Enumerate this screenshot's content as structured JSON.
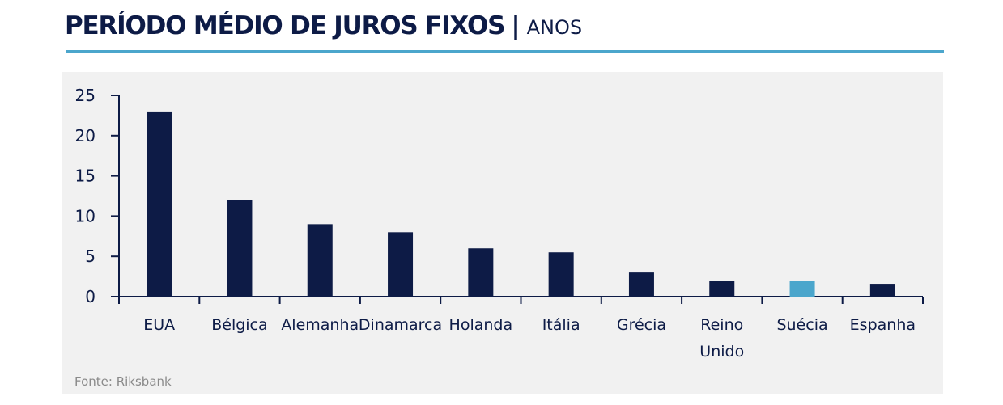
{
  "header": {
    "title": "PERÍODO MÉDIO DE JUROS FIXOS",
    "separator": "|",
    "unit": "ANOS"
  },
  "footer": {
    "source": "Fonte: Riksbank"
  },
  "colors": {
    "bar_default": "#0d1b46",
    "bar_highlight": "#4ba6cc",
    "accent_rule": "#4ba6cc",
    "panel_bg": "#f1f1f1"
  },
  "chart_data": {
    "type": "bar",
    "title": "PERÍODO MÉDIO DE JUROS FIXOS | ANOS",
    "xlabel": "",
    "ylabel": "",
    "ylim": [
      0,
      25
    ],
    "yticks": [
      0,
      5,
      10,
      15,
      20,
      25
    ],
    "grid": false,
    "legend": "none",
    "categories": [
      "EUA",
      "Bélgica",
      "Alemanha",
      "Dinamarca",
      "Holanda",
      "Itália",
      "Grécia",
      "Reino Unido",
      "Suécia",
      "Espanha"
    ],
    "category_label_lines": [
      [
        "EUA"
      ],
      [
        "Bélgica"
      ],
      [
        "Alemanha"
      ],
      [
        "Dinamarca"
      ],
      [
        "Holanda"
      ],
      [
        "Itália"
      ],
      [
        "Grécia"
      ],
      [
        "Reino",
        "Unido"
      ],
      [
        "Suécia"
      ],
      [
        "Espanha"
      ]
    ],
    "values": [
      23,
      12,
      9,
      8,
      6,
      5.5,
      3,
      2,
      2,
      1.6
    ],
    "highlight": [
      "Suécia"
    ]
  }
}
